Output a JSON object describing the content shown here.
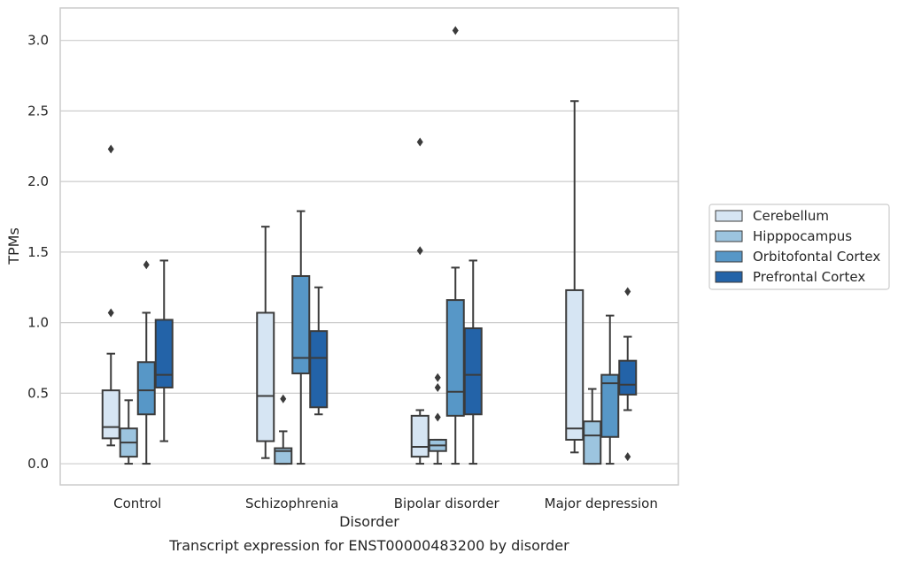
{
  "chart_data": {
    "type": "box",
    "caption": "Transcript expression for ENST00000483200 by disorder",
    "xlabel": "Disorder",
    "ylabel": "TPMs",
    "ylim": [
      -0.15,
      3.23
    ],
    "yticks": [
      "0.0",
      "0.5",
      "1.0",
      "1.5",
      "2.0",
      "2.5",
      "3.0"
    ],
    "grid": true,
    "legend_position": "right",
    "categories": [
      "Control",
      "Schizophrenia",
      "Bipolar disorder",
      "Major depression"
    ],
    "series": [
      {
        "name": "Cerebellum",
        "color": "#d6e5f3",
        "boxes": [
          {
            "whislo": 0.13,
            "q1": 0.18,
            "med": 0.26,
            "q3": 0.52,
            "whishi": 0.78,
            "fliers": [
              1.07,
              2.23
            ]
          },
          {
            "whislo": 0.04,
            "q1": 0.16,
            "med": 0.48,
            "q3": 1.07,
            "whishi": 1.68,
            "fliers": []
          },
          {
            "whislo": 0.0,
            "q1": 0.05,
            "med": 0.12,
            "q3": 0.34,
            "whishi": 0.38,
            "fliers": [
              1.51,
              2.28
            ]
          },
          {
            "whislo": 0.08,
            "q1": 0.17,
            "med": 0.25,
            "q3": 1.23,
            "whishi": 2.57,
            "fliers": []
          }
        ]
      },
      {
        "name": "Hipppocampus",
        "color": "#9cc4df",
        "boxes": [
          {
            "whislo": 0.0,
            "q1": 0.05,
            "med": 0.15,
            "q3": 0.25,
            "whishi": 0.45,
            "fliers": []
          },
          {
            "whislo": 0.0,
            "q1": 0.0,
            "med": 0.09,
            "q3": 0.11,
            "whishi": 0.23,
            "fliers": [
              0.46
            ]
          },
          {
            "whislo": 0.0,
            "q1": 0.09,
            "med": 0.13,
            "q3": 0.17,
            "whishi": 0.17,
            "fliers": [
              0.33,
              0.54,
              0.61
            ]
          },
          {
            "whislo": 0.0,
            "q1": 0.0,
            "med": 0.2,
            "q3": 0.3,
            "whishi": 0.53,
            "fliers": []
          }
        ]
      },
      {
        "name": "Orbitofontal Cortex",
        "color": "#5797c7",
        "boxes": [
          {
            "whislo": 0.0,
            "q1": 0.35,
            "med": 0.52,
            "q3": 0.72,
            "whishi": 1.07,
            "fliers": [
              1.41
            ]
          },
          {
            "whislo": 0.0,
            "q1": 0.64,
            "med": 0.75,
            "q3": 1.33,
            "whishi": 1.79,
            "fliers": []
          },
          {
            "whislo": 0.0,
            "q1": 0.34,
            "med": 0.51,
            "q3": 1.16,
            "whishi": 1.39,
            "fliers": [
              3.07
            ]
          },
          {
            "whislo": 0.0,
            "q1": 0.19,
            "med": 0.57,
            "q3": 0.63,
            "whishi": 1.05,
            "fliers": []
          }
        ]
      },
      {
        "name": "Prefrontal Cortex",
        "color": "#2363a8",
        "boxes": [
          {
            "whislo": 0.16,
            "q1": 0.54,
            "med": 0.63,
            "q3": 1.02,
            "whishi": 1.44,
            "fliers": []
          },
          {
            "whislo": 0.35,
            "q1": 0.4,
            "med": 0.75,
            "q3": 0.94,
            "whishi": 1.25,
            "fliers": []
          },
          {
            "whislo": 0.0,
            "q1": 0.35,
            "med": 0.63,
            "q3": 0.96,
            "whishi": 1.44,
            "fliers": []
          },
          {
            "whislo": 0.38,
            "q1": 0.49,
            "med": 0.56,
            "q3": 0.73,
            "whishi": 0.9,
            "fliers": [
              0.05,
              1.22
            ]
          }
        ]
      }
    ]
  }
}
